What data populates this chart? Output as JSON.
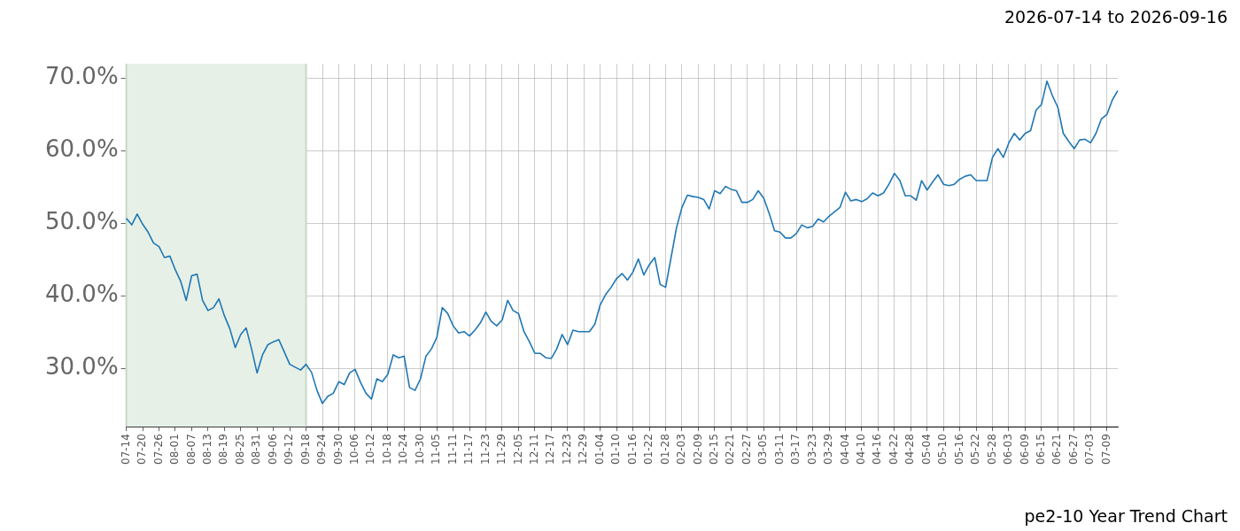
{
  "chart_data": {
    "type": "line",
    "title": "pe2-10 Year Trend Chart",
    "annotations": [
      "2026-07-14 to 2026-09-16"
    ],
    "categories": [
      "07-14",
      null,
      null,
      "07-20",
      null,
      null,
      "07-26",
      null,
      null,
      "08-01",
      null,
      null,
      "08-07",
      null,
      null,
      "08-13",
      null,
      null,
      "08-19",
      null,
      null,
      "08-25",
      null,
      null,
      "08-31",
      null,
      null,
      "09-06",
      null,
      null,
      "09-12",
      null,
      null,
      "09-18",
      null,
      null,
      "09-24",
      null,
      null,
      "09-30",
      null,
      null,
      "10-06",
      null,
      null,
      "10-12",
      null,
      null,
      "10-18",
      null,
      null,
      "10-24",
      null,
      null,
      "10-30",
      null,
      null,
      "11-05",
      null,
      null,
      "11-11",
      null,
      null,
      "11-17",
      null,
      null,
      "11-23",
      null,
      null,
      "11-29",
      null,
      null,
      "12-05",
      null,
      null,
      "12-11",
      null,
      null,
      "12-17",
      null,
      null,
      "12-23",
      null,
      null,
      "12-29",
      null,
      null,
      "01-04",
      null,
      null,
      "01-10",
      null,
      null,
      "01-16",
      null,
      null,
      "01-22",
      null,
      null,
      "01-28",
      null,
      null,
      "02-03",
      null,
      null,
      "02-09",
      null,
      null,
      "02-15",
      null,
      null,
      "02-21",
      null,
      null,
      "02-27",
      null,
      null,
      "03-05",
      null,
      null,
      "03-11",
      null,
      null,
      "03-17",
      null,
      null,
      "03-23",
      null,
      null,
      "03-29",
      null,
      null,
      "04-04",
      null,
      null,
      "04-10",
      null,
      null,
      "04-16",
      null,
      null,
      "04-22",
      null,
      null,
      "04-28",
      null,
      null,
      "05-04",
      null,
      null,
      "05-10",
      null,
      null,
      "05-16",
      null,
      null,
      "05-22",
      null,
      null,
      "05-28",
      null,
      null,
      "06-03",
      null,
      null,
      "06-09",
      null,
      null,
      "06-15",
      null,
      null,
      "06-21",
      null,
      null,
      "06-27",
      null,
      null,
      "07-03",
      null,
      null,
      "07-09",
      null,
      null
    ],
    "series": [
      {
        "color": "#1f77b4",
        "values": [
          50.7,
          49.8,
          51.3,
          49.9,
          48.8,
          47.3,
          46.8,
          45.3,
          45.5,
          43.6,
          42.0,
          39.4,
          42.8,
          43.0,
          39.4,
          38.0,
          38.4,
          39.6,
          37.3,
          35.5,
          32.9,
          34.7,
          35.6,
          32.7,
          29.4,
          31.9,
          33.3,
          33.7,
          34.0,
          32.3,
          30.6,
          30.2,
          29.8,
          30.6,
          29.5,
          27.0,
          25.2,
          26.2,
          26.6,
          28.2,
          27.8,
          29.4,
          29.9,
          28.1,
          26.6,
          25.8,
          28.6,
          28.2,
          29.2,
          31.9,
          31.5,
          31.7,
          27.4,
          27.0,
          28.6,
          31.7,
          32.7,
          34.3,
          38.4,
          37.6,
          35.9,
          34.9,
          35.1,
          34.5,
          35.3,
          36.3,
          37.8,
          36.5,
          35.9,
          36.7,
          39.4,
          38.0,
          37.6,
          35.1,
          33.7,
          32.1,
          32.1,
          31.5,
          31.4,
          32.7,
          34.7,
          33.3,
          35.3,
          35.1,
          35.1,
          35.1,
          36.1,
          38.8,
          40.2,
          41.2,
          42.4,
          43.1,
          42.2,
          43.3,
          45.1,
          42.9,
          44.3,
          45.3,
          41.6,
          41.2,
          45.3,
          49.4,
          52.2,
          53.9,
          53.7,
          53.6,
          53.3,
          52.0,
          54.5,
          54.1,
          55.1,
          54.7,
          54.5,
          52.9,
          52.9,
          53.3,
          54.5,
          53.5,
          51.4,
          49.0,
          48.8,
          48.0,
          48.0,
          48.6,
          49.8,
          49.4,
          49.6,
          50.6,
          50.2,
          51.0,
          51.6,
          52.2,
          54.3,
          53.1,
          53.3,
          53.0,
          53.4,
          54.2,
          53.8,
          54.2,
          55.4,
          56.9,
          55.9,
          53.8,
          53.8,
          53.2,
          55.9,
          54.6,
          55.7,
          56.7,
          55.4,
          55.2,
          55.4,
          56.1,
          56.5,
          56.7,
          55.9,
          55.9,
          55.9,
          59.1,
          60.3,
          59.1,
          61.1,
          62.4,
          61.5,
          62.4,
          62.8,
          65.6,
          66.4,
          69.6,
          67.6,
          66.0,
          62.4,
          61.3,
          60.3,
          61.5,
          61.6,
          61.1,
          62.4,
          64.4,
          65.0,
          67.0,
          68.3
        ]
      }
    ],
    "ylim": [
      22,
      72
    ],
    "yticks": [
      {
        "value": 30,
        "label": "30.0%"
      },
      {
        "value": 40,
        "label": "40.0%"
      },
      {
        "value": 50,
        "label": "50.0%"
      },
      {
        "value": 60,
        "label": "60.0%"
      },
      {
        "value": 70,
        "label": "70.0%"
      }
    ],
    "bands": [
      {
        "axis": "x",
        "from": "07-14",
        "to": "09-18",
        "color": "#e6f0e6"
      }
    ],
    "grid": true,
    "legend": false,
    "marker": "none",
    "line_style": "solid"
  }
}
